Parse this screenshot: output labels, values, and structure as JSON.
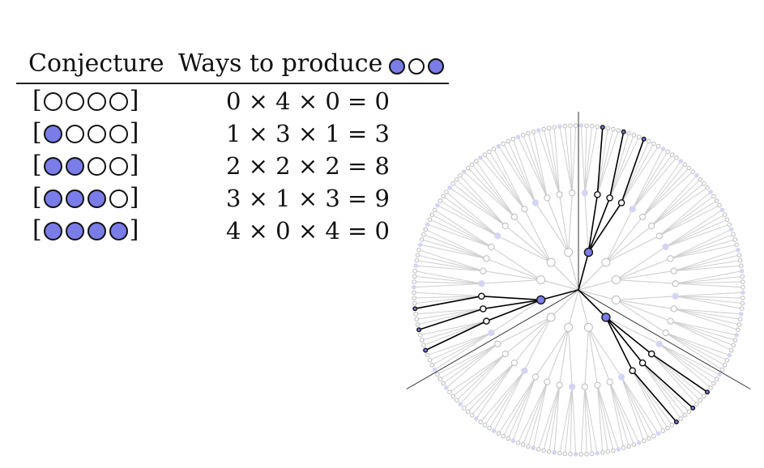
{
  "table": {
    "header": {
      "conjecture": "Conjecture",
      "ways": "Ways to produce",
      "observation": [
        "blue",
        "white",
        "blue"
      ]
    },
    "rows": [
      {
        "conjecture": [
          "white",
          "white",
          "white",
          "white"
        ],
        "ways": "0 × 4 × 0 = 0"
      },
      {
        "conjecture": [
          "blue",
          "white",
          "white",
          "white"
        ],
        "ways": "1 × 3 × 1 = 3"
      },
      {
        "conjecture": [
          "blue",
          "blue",
          "white",
          "white"
        ],
        "ways": "2 × 2 × 2 = 8"
      },
      {
        "conjecture": [
          "blue",
          "blue",
          "blue",
          "white"
        ],
        "ways": "3 × 1 × 3 = 9"
      },
      {
        "conjecture": [
          "blue",
          "blue",
          "blue",
          "blue"
        ],
        "ways": "4 × 0 × 4 = 0"
      }
    ]
  },
  "garden": {
    "conjecture": [
      "blue",
      "white",
      "white",
      "white"
    ],
    "observation": [
      "blue",
      "white",
      "blue"
    ],
    "draws": 3,
    "colors": {
      "blue": "#7a7ce8",
      "path": "#000000",
      "faded_line": "#cfcfcf",
      "faded_blue": "#d4d4f4",
      "faded_white_stroke": "#bbbbbb"
    }
  }
}
